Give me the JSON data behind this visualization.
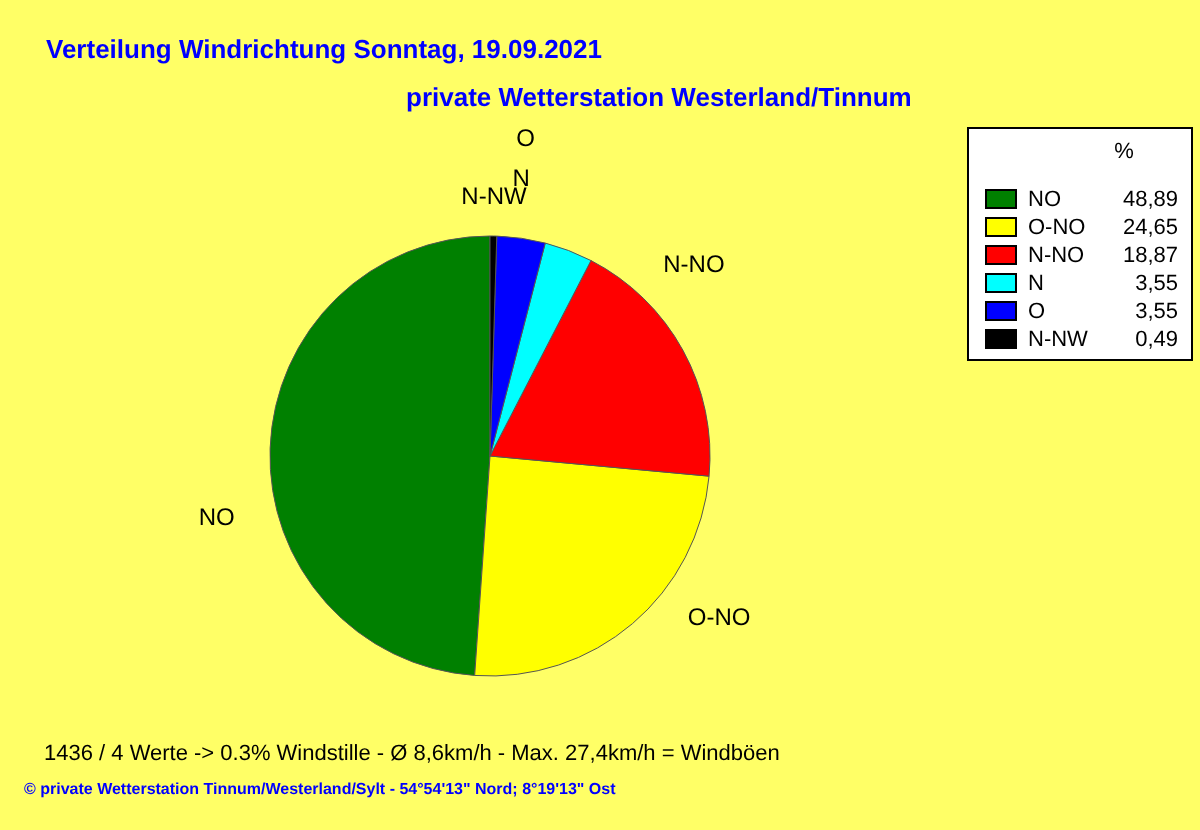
{
  "chart_data": {
    "type": "pie",
    "title": "Verteilung Windrichtung   Sonntag, 19.09.2021",
    "subtitle": "private Wetterstation Westerland/Tinnum",
    "legend_title": "%",
    "legend": "top right",
    "categories": [
      "NO",
      "O-NO",
      "N-NO",
      "N",
      "O",
      "N-NW"
    ],
    "values": [
      48.89,
      24.65,
      18.87,
      3.55,
      3.55,
      0.49
    ],
    "value_labels": [
      "48,89",
      "24,65",
      "18,87",
      "3,55",
      "3,55",
      "0,49"
    ],
    "colors": [
      "#008000",
      "#ffff00",
      "#ff0000",
      "#00ffff",
      "#0000ff",
      "#000000"
    ],
    "annotations": [
      "1436 / 4 Werte  -> 0.3% Windstille   -   Ø 8,6km/h  -  Max. 27,4km/h = Windböen",
      "© private Wetterstation Tinnum/Westerland/Sylt  -  54°54'13\" Nord; 8°19'13\" Ost"
    ]
  }
}
